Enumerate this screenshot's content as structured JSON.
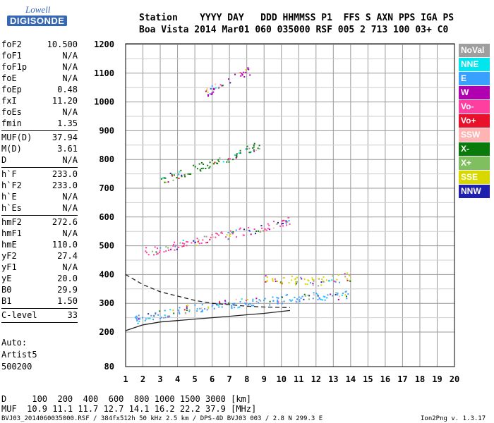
{
  "logo": {
    "top": "Lowell",
    "bottom": "DIGISONDE"
  },
  "header": {
    "line1": "Station    YYYY DAY   DDD HHMMSS P1  FFS S AXN PPS IGA PS",
    "line2": "Boa Vista 2014 Mar01 060 035000 RSF 005 2 713 100 03+ C0"
  },
  "params": [
    {
      "name": "foF2",
      "value": "10.500",
      "sep_after": false
    },
    {
      "name": "foF1",
      "value": "N/A",
      "sep_after": false
    },
    {
      "name": "foF1p",
      "value": "N/A",
      "sep_after": false
    },
    {
      "name": "foE",
      "value": "N/A",
      "sep_after": false
    },
    {
      "name": "foEp",
      "value": "0.48",
      "sep_after": false
    },
    {
      "name": "fxI",
      "value": "11.20",
      "sep_after": false
    },
    {
      "name": "foEs",
      "value": "N/A",
      "sep_after": false
    },
    {
      "name": "fmin",
      "value": "1.35",
      "sep_after": true
    },
    {
      "name": "MUF(D)",
      "value": "37.94",
      "sep_after": false
    },
    {
      "name": "M(D)",
      "value": "3.61",
      "sep_after": false
    },
    {
      "name": "D",
      "value": "N/A",
      "sep_after": true
    },
    {
      "name": "h`F",
      "value": "233.0",
      "sep_after": false
    },
    {
      "name": "h`F2",
      "value": "233.0",
      "sep_after": false
    },
    {
      "name": "h`E",
      "value": "N/A",
      "sep_after": false
    },
    {
      "name": "h`Es",
      "value": "N/A",
      "sep_after": true
    },
    {
      "name": "hmF2",
      "value": "272.6",
      "sep_after": false
    },
    {
      "name": "hmF1",
      "value": "N/A",
      "sep_after": false
    },
    {
      "name": "hmE",
      "value": "110.0",
      "sep_after": false
    },
    {
      "name": "yF2",
      "value": "27.4",
      "sep_after": false
    },
    {
      "name": "yF1",
      "value": "N/A",
      "sep_after": false
    },
    {
      "name": "yE",
      "value": "20.0",
      "sep_after": false
    },
    {
      "name": "B0",
      "value": "29.9",
      "sep_after": false
    },
    {
      "name": "B1",
      "value": "1.50",
      "sep_after": true
    },
    {
      "name": "C-level",
      "value": "33",
      "sep_after": true
    }
  ],
  "autoscale": {
    "line1": "Auto:",
    "line2": "Artist5",
    "line3": "500200"
  },
  "legend": [
    {
      "label": "NoVal",
      "color": "#9e9e9e"
    },
    {
      "label": "NNE",
      "color": "#00e5ee"
    },
    {
      "label": "E",
      "color": "#3aa0ff"
    },
    {
      "label": "W",
      "color": "#b000b0"
    },
    {
      "label": "Vo-",
      "color": "#ff3fa0"
    },
    {
      "label": "Vo+",
      "color": "#e8102a"
    },
    {
      "label": "SSW",
      "color": "#ffb3b3"
    },
    {
      "label": "X-",
      "color": "#0a7a0a"
    },
    {
      "label": "X+",
      "color": "#7fbf5f"
    },
    {
      "label": "SSE",
      "color": "#d8d800"
    },
    {
      "label": "NNW",
      "color": "#2020b0"
    }
  ],
  "footer": {
    "line1": "D     100  200  400  600  800 1000 1500 3000 [km]",
    "line2": "MUF  10.9 11.1 11.7 12.7 14.1 16.2 22.2 37.9 [MHz]",
    "file": "BVJ03_2014060035000.RSF / 384fx512h 50 kHz 2.5 km / DPS-4D BVJ03 003 / 2.8 N 299.3 E",
    "version": "Ion2Png v. 1.3.17"
  },
  "chart_data": {
    "type": "scatter",
    "x_ticks": [
      1,
      2,
      3,
      4,
      5,
      6,
      7,
      8,
      9,
      10,
      11,
      12,
      13,
      14,
      15,
      16,
      17,
      18,
      19,
      20
    ],
    "y_ticks": [
      80,
      200,
      300,
      400,
      500,
      600,
      700,
      800,
      900,
      1000,
      1100,
      1200
    ],
    "xlim": [
      1,
      20
    ],
    "ylim": [
      80,
      1200
    ],
    "grid": true,
    "legend_position": "right",
    "series": [
      {
        "color": "#3aa0ff",
        "points": [
          [
            1.5,
            240
          ],
          [
            2,
            255
          ],
          [
            3,
            265
          ],
          [
            4,
            275
          ],
          [
            5,
            285
          ],
          [
            6,
            292
          ],
          [
            7,
            300
          ],
          [
            8,
            305
          ],
          [
            9,
            310
          ],
          [
            10,
            316
          ],
          [
            11,
            320
          ],
          [
            12,
            325
          ],
          [
            13,
            328
          ],
          [
            14,
            330
          ]
        ]
      },
      {
        "color": "#ff3fa0",
        "points": [
          [
            2,
            480
          ],
          [
            3,
            490
          ],
          [
            4,
            505
          ],
          [
            5,
            515
          ],
          [
            6,
            530
          ],
          [
            7,
            540
          ],
          [
            8,
            555
          ],
          [
            9,
            565
          ],
          [
            10,
            580
          ],
          [
            10.5,
            590
          ]
        ]
      },
      {
        "color": "#0a7a0a",
        "points": [
          [
            3,
            730
          ],
          [
            4,
            750
          ],
          [
            5,
            770
          ],
          [
            6,
            790
          ],
          [
            7,
            810
          ],
          [
            8,
            835
          ],
          [
            8.7,
            850
          ]
        ]
      },
      {
        "color": "#d8d800",
        "points": [
          [
            9,
            390
          ],
          [
            10,
            385
          ],
          [
            11,
            380
          ],
          [
            12,
            375
          ],
          [
            13,
            385
          ],
          [
            14,
            395
          ]
        ]
      },
      {
        "color": "#b000b0",
        "points": [
          [
            5.5,
            1030
          ],
          [
            6,
            1045
          ],
          [
            7.5,
            1100
          ],
          [
            8.2,
            1110
          ]
        ]
      }
    ],
    "curves": [
      {
        "style": "solid",
        "points": [
          [
            1,
            205
          ],
          [
            2,
            225
          ],
          [
            3,
            235
          ],
          [
            4,
            240
          ],
          [
            5,
            245
          ],
          [
            6,
            250
          ],
          [
            7,
            255
          ],
          [
            8,
            260
          ],
          [
            9,
            265
          ],
          [
            10.5,
            275
          ]
        ]
      },
      {
        "style": "dashed",
        "points": [
          [
            1,
            400
          ],
          [
            2,
            365
          ],
          [
            3,
            340
          ],
          [
            4,
            325
          ],
          [
            5,
            310
          ],
          [
            6,
            300
          ],
          [
            7,
            295
          ],
          [
            8,
            290
          ],
          [
            9,
            287
          ],
          [
            10.5,
            285
          ]
        ]
      }
    ]
  }
}
